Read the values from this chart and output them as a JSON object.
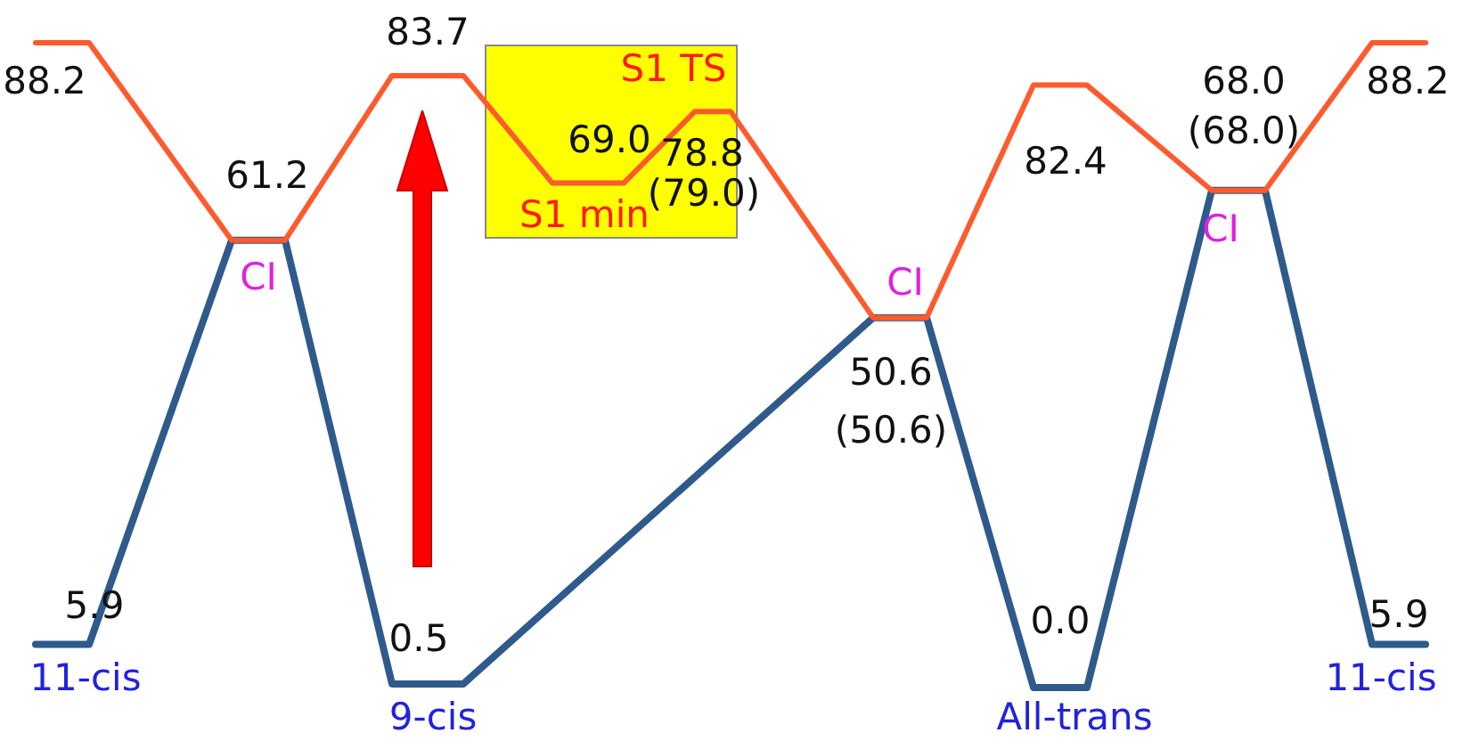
{
  "chart_data": {
    "type": "line",
    "legend": false,
    "tick_labels": false,
    "categories": [
      null,
      null,
      null,
      null,
      null,
      null,
      null,
      null,
      null,
      null,
      null,
      null,
      null,
      null,
      null,
      null,
      null,
      null,
      null,
      null,
      null,
      null,
      null,
      null,
      null,
      null,
      null,
      null,
      null,
      null,
      null,
      null,
      null,
      null,
      null,
      null,
      null,
      null,
      null,
      null,
      null,
      null,
      null,
      null,
      null,
      null,
      null,
      null,
      null,
      null,
      null,
      null,
      null,
      null,
      null,
      null,
      null,
      null,
      null,
      null,
      null,
      null,
      null,
      null,
      null,
      null,
      null,
      null,
      null,
      null,
      null,
      null,
      null,
      null,
      null,
      null,
      null,
      null,
      null
    ],
    "series": [
      {
        "color": "#ff5a2e",
        "values": [
          88.2,
          null,
          null,
          88.2,
          null,
          null,
          null,
          null,
          null,
          null,
          null,
          61.2,
          null,
          null,
          61.2,
          null,
          null,
          null,
          null,
          null,
          83.7,
          null,
          null,
          null,
          83.7,
          null,
          null,
          null,
          null,
          69.0,
          null,
          null,
          null,
          69.0,
          null,
          null,
          null,
          78.8,
          null,
          78.8,
          null,
          null,
          null,
          null,
          null,
          null,
          null,
          50.6,
          null,
          null,
          50.6,
          null,
          null,
          null,
          null,
          null,
          82.4,
          null,
          null,
          82.4,
          null,
          null,
          null,
          null,
          null,
          null,
          68.0,
          null,
          null,
          68.0,
          null,
          null,
          null,
          null,
          null,
          88.2,
          null,
          null,
          88.2
        ],
        "value_labels": [
          "88.2",
          null,
          null,
          null,
          null,
          null,
          null,
          null,
          null,
          null,
          null,
          "61.2",
          null,
          null,
          null,
          null,
          null,
          null,
          null,
          null,
          "83.7",
          null,
          null,
          null,
          null,
          null,
          null,
          null,
          null,
          "69.0",
          null,
          null,
          null,
          null,
          null,
          null,
          null,
          "78.8",
          null,
          null,
          null,
          null,
          null,
          null,
          null,
          null,
          null,
          "50.6",
          null,
          null,
          null,
          null,
          null,
          null,
          null,
          null,
          "82.4",
          null,
          null,
          null,
          null,
          null,
          null,
          null,
          null,
          null,
          "68.0",
          null,
          null,
          null,
          null,
          null,
          null,
          null,
          null,
          "88.2",
          null,
          null,
          null
        ]
      },
      {
        "color": "#2e5a8c",
        "values": [
          5.9,
          null,
          null,
          5.9,
          null,
          null,
          null,
          null,
          null,
          null,
          null,
          61.2,
          null,
          null,
          61.2,
          null,
          null,
          null,
          null,
          null,
          0.5,
          null,
          null,
          null,
          0.5,
          null,
          null,
          null,
          null,
          null,
          null,
          null,
          null,
          null,
          null,
          null,
          null,
          null,
          null,
          null,
          null,
          null,
          null,
          null,
          null,
          null,
          null,
          50.6,
          null,
          null,
          50.6,
          null,
          null,
          null,
          null,
          null,
          0.0,
          null,
          null,
          0.0,
          null,
          null,
          null,
          null,
          null,
          null,
          68.0,
          null,
          null,
          68.0,
          null,
          null,
          null,
          null,
          null,
          5.9,
          null,
          null,
          5.9
        ],
        "value_labels": [
          "5.9",
          null,
          null,
          null,
          null,
          null,
          null,
          null,
          null,
          null,
          null,
          null,
          null,
          null,
          null,
          null,
          null,
          null,
          null,
          null,
          "0.5",
          null,
          null,
          null,
          null,
          null,
          null,
          null,
          null,
          null,
          null,
          null,
          null,
          null,
          null,
          null,
          null,
          null,
          null,
          null,
          null,
          null,
          null,
          null,
          null,
          null,
          null,
          null,
          null,
          null,
          null,
          null,
          null,
          null,
          null,
          null,
          "0.0",
          null,
          null,
          null,
          null,
          null,
          null,
          null,
          null,
          null,
          null,
          null,
          null,
          null,
          null,
          null,
          null,
          null,
          null,
          "5.9",
          null,
          null,
          null
        ]
      }
    ],
    "annotations": [
      "CI",
      "CI",
      "CI",
      "S1 TS",
      "S1 min",
      "(79.0)",
      "(50.6)",
      "(68.0)",
      "11-cis",
      "9-cis",
      "All-trans",
      "11-cis"
    ]
  }
}
